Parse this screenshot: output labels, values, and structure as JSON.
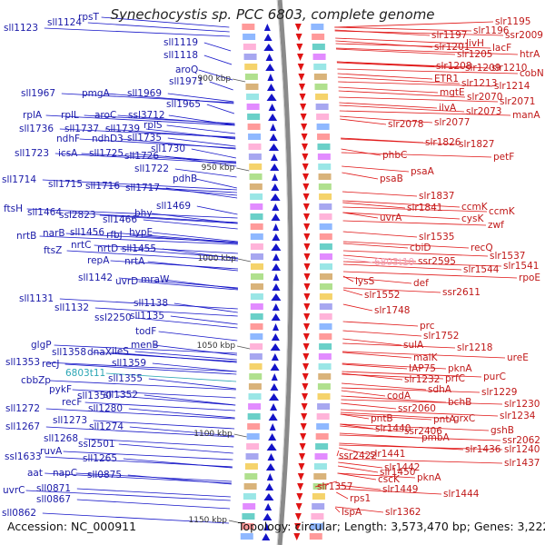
{
  "title": "Synechocystis sp. PCC 6803, complete genome",
  "footer": {
    "accession": "Accession: NC_000911",
    "summary": "Topology: circular; Length: 3,573,470 bp; Genes: 3,222"
  },
  "colors": {
    "forward": "#1414c8",
    "reverse": "#e01414",
    "rna": "#2ba6b5",
    "backbone": "#8a8a8a",
    "tick_marker": "#2a9a2a"
  },
  "scale_ticks": [
    "900 kbp",
    "950 kbp",
    "1000 kbp",
    "1050 kbp",
    "1100 kbp",
    "1150 kbp"
  ],
  "left_labels": [
    {
      "t": "sll1123"
    },
    {
      "t": "sll1124"
    },
    {
      "t": "rpsT"
    },
    {
      "t": "sll1119"
    },
    {
      "t": "sll1118"
    },
    {
      "t": "aroQ"
    },
    {
      "t": "sll1971"
    },
    {
      "t": "sll1967"
    },
    {
      "t": "pmgA"
    },
    {
      "t": "sll1969"
    },
    {
      "t": "sll1965"
    },
    {
      "t": "rplA"
    },
    {
      "t": "rplL"
    },
    {
      "t": "aroC"
    },
    {
      "t": "ssl3712"
    },
    {
      "t": "sll1736"
    },
    {
      "t": "sll1737"
    },
    {
      "t": "sll1739"
    },
    {
      "t": "rplS"
    },
    {
      "t": "ndhF"
    },
    {
      "t": "ndhD3"
    },
    {
      "t": "sll1735"
    },
    {
      "t": "sll1730"
    },
    {
      "t": "sll1723"
    },
    {
      "t": "icsA"
    },
    {
      "t": "sll1725"
    },
    {
      "t": "sll1726"
    },
    {
      "t": "sll1722"
    },
    {
      "t": "pdhB"
    },
    {
      "t": "sll1714"
    },
    {
      "t": "sll1715"
    },
    {
      "t": "sll1716"
    },
    {
      "t": "sll1717"
    },
    {
      "t": "sll1469"
    },
    {
      "t": "ftsH"
    },
    {
      "t": "sll1464"
    },
    {
      "t": "ssl2823"
    },
    {
      "t": "sll1466"
    },
    {
      "t": "bhy"
    },
    {
      "t": "nrtB"
    },
    {
      "t": "narB"
    },
    {
      "t": "sll1456"
    },
    {
      "t": "rfbJ"
    },
    {
      "t": "hypE"
    },
    {
      "t": "ftsZ"
    },
    {
      "t": "nrtC"
    },
    {
      "t": "nrtD"
    },
    {
      "t": "sll1455"
    },
    {
      "t": "repA"
    },
    {
      "t": "nrtA"
    },
    {
      "t": "sll1142"
    },
    {
      "t": "uvrD"
    },
    {
      "t": "mraW"
    },
    {
      "t": "sll1131"
    },
    {
      "t": "sll1132"
    },
    {
      "t": "sll1138"
    },
    {
      "t": "ssl2250"
    },
    {
      "t": "sll1135"
    },
    {
      "t": "todF"
    },
    {
      "t": "menB"
    },
    {
      "t": "glgP"
    },
    {
      "t": "sll1358"
    },
    {
      "t": "dnaX"
    },
    {
      "t": "ileS"
    },
    {
      "t": "sll1353"
    },
    {
      "t": "recJ"
    },
    {
      "t": "sll1359"
    },
    {
      "t": "cbbZp"
    },
    {
      "t": "sll1355"
    },
    {
      "t": "pykF"
    },
    {
      "t": "sll1350"
    },
    {
      "t": "sll1352"
    },
    {
      "t": "recF"
    },
    {
      "t": "sll1280"
    },
    {
      "t": "sll1272"
    },
    {
      "t": "sll1273"
    },
    {
      "t": "sll1274"
    },
    {
      "t": "sll1267"
    },
    {
      "t": "sll1268"
    },
    {
      "t": "ssl2501"
    },
    {
      "t": "ssl1633"
    },
    {
      "t": "ruvA"
    },
    {
      "t": "sll1265"
    },
    {
      "t": "aat"
    },
    {
      "t": "napC"
    },
    {
      "t": "sll0875"
    },
    {
      "t": "uvrC"
    },
    {
      "t": "sll0871"
    },
    {
      "t": "sll0867"
    },
    {
      "t": "sll0862"
    },
    {
      "t": "6803t11"
    }
  ],
  "right_labels": [
    {
      "t": "slr1195"
    },
    {
      "t": "slr1197"
    },
    {
      "t": "slr1196"
    },
    {
      "t": "ssr2009"
    },
    {
      "t": "livH"
    },
    {
      "t": "slr1201"
    },
    {
      "t": "lacF"
    },
    {
      "t": "slr1205"
    },
    {
      "t": "htrA"
    },
    {
      "t": "slr1208"
    },
    {
      "t": "slr1209"
    },
    {
      "t": "slr1210"
    },
    {
      "t": "cobN"
    },
    {
      "t": "ETR1"
    },
    {
      "t": "slr1213"
    },
    {
      "t": "slr1214"
    },
    {
      "t": "mgtE"
    },
    {
      "t": "slr2070"
    },
    {
      "t": "slr2071"
    },
    {
      "t": "ilvA"
    },
    {
      "t": "slr2073"
    },
    {
      "t": "manA"
    },
    {
      "t": "slr2078"
    },
    {
      "t": "slr2077"
    },
    {
      "t": "slr1826"
    },
    {
      "t": "slr1827"
    },
    {
      "t": "phbC"
    },
    {
      "t": "petF"
    },
    {
      "t": "psaA"
    },
    {
      "t": "psaB"
    },
    {
      "t": "slr1837"
    },
    {
      "t": "slr1841"
    },
    {
      "t": "ccmK"
    },
    {
      "t": "ccmK"
    },
    {
      "t": "uvrA"
    },
    {
      "t": "cysK"
    },
    {
      "t": "zwf"
    },
    {
      "t": "slr1535"
    },
    {
      "t": "recQ"
    },
    {
      "t": "cbiD"
    },
    {
      "t": "slr1537"
    },
    {
      "t": "ssr2595"
    },
    {
      "t": "slr1541"
    },
    {
      "t": "slr1544"
    },
    {
      "t": "rpoE"
    },
    {
      "t": "6803t10"
    },
    {
      "t": "lysS"
    },
    {
      "t": "def"
    },
    {
      "t": "ssr2611"
    },
    {
      "t": "slr1552"
    },
    {
      "t": "slr1748"
    },
    {
      "t": "prc"
    },
    {
      "t": "slr1752"
    },
    {
      "t": "sulA"
    },
    {
      "t": "slr1218"
    },
    {
      "t": "malK"
    },
    {
      "t": "ureE"
    },
    {
      "t": "IAP75"
    },
    {
      "t": "pknA"
    },
    {
      "t": "slr1232"
    },
    {
      "t": "prfC"
    },
    {
      "t": "purC"
    },
    {
      "t": "sdhA"
    },
    {
      "t": "slr1229"
    },
    {
      "t": "codA"
    },
    {
      "t": "bchB"
    },
    {
      "t": "slr1230"
    },
    {
      "t": "ssr2060"
    },
    {
      "t": "slr1234"
    },
    {
      "t": "pntB"
    },
    {
      "t": "pntA"
    },
    {
      "t": "grxC"
    },
    {
      "t": "slr1440"
    },
    {
      "t": "ssr2406"
    },
    {
      "t": "gshB"
    },
    {
      "t": "pmbA"
    },
    {
      "t": "ssr2062"
    },
    {
      "t": "slr1436"
    },
    {
      "t": "slr1240"
    },
    {
      "t": "ssr2422"
    },
    {
      "t": "slr1441"
    },
    {
      "t": "slr1437"
    },
    {
      "t": "slr1442"
    },
    {
      "t": "slr1450"
    },
    {
      "t": "pknA"
    },
    {
      "t": "slr1357"
    },
    {
      "t": "cscK"
    },
    {
      "t": "slr1449"
    },
    {
      "t": "slr1444"
    },
    {
      "t": "rps1"
    },
    {
      "t": "lspA"
    },
    {
      "t": "slr1362"
    }
  ]
}
